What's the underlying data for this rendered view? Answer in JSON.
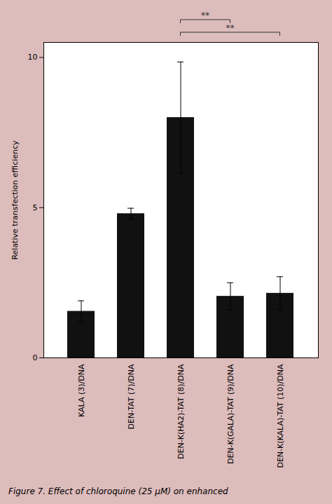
{
  "chart_data": {
    "type": "bar",
    "categories": [
      "KALA (3)/DNA",
      "DEN-TAT (7)/DNA",
      "DEN-K(HA2)-TAT (8)/DNA",
      "DEN-K(GALA)-TAT (9)/DNA",
      "DEN-K(KALA)-TAT (10)/DNA"
    ],
    "values": [
      1.55,
      4.8,
      8.0,
      2.05,
      2.15
    ],
    "errors": [
      0.35,
      0.18,
      1.85,
      0.45,
      0.55
    ],
    "color": "#111111",
    "ylabel": "Relative transfection efficiency",
    "ylim": [
      0,
      10.5
    ],
    "yticks": [
      0,
      5,
      10
    ],
    "grid": false,
    "annotations": [
      {
        "from": "DEN-K(HA2)-TAT (8)/DNA",
        "to": "DEN-K(GALA)-TAT (9)/DNA",
        "label": "**"
      },
      {
        "from": "DEN-K(HA2)-TAT (8)/DNA",
        "to": "DEN-K(KALA)-TAT (10)/DNA",
        "label": "**"
      }
    ],
    "caption": "Figure 7. Effect of chloroquine (25 μM) on enhanced"
  }
}
